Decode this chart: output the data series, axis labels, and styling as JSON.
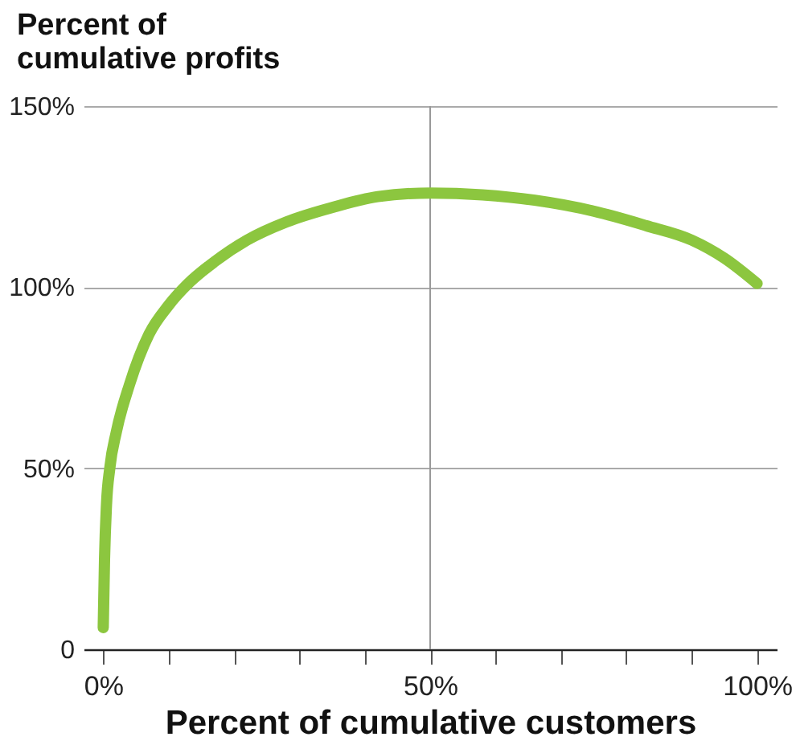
{
  "chart_data": {
    "type": "line",
    "xlabel": "Percent of cumulative customers",
    "ylabel": "Percent of cumulative profits",
    "x": [
      0,
      0.2,
      0.5,
      1,
      2,
      4,
      7,
      10,
      13,
      17,
      22,
      28,
      35,
      42,
      50,
      58,
      66,
      75,
      83,
      90,
      95,
      100
    ],
    "series": [
      {
        "color": "#8cc63f",
        "values": [
          6,
          25,
          40,
          50,
          60,
          73,
          87,
          95,
          101,
          107,
          113,
          118,
          122,
          125,
          126,
          125.5,
          124,
          121,
          117,
          113,
          108,
          101
        ]
      }
    ],
    "xlim": [
      -3,
      103
    ],
    "xticks": [
      {
        "value": 0,
        "label": "0%"
      },
      {
        "value": 10,
        "label": null
      },
      {
        "value": 20,
        "label": null
      },
      {
        "value": 30,
        "label": null
      },
      {
        "value": 40,
        "label": null
      },
      {
        "value": 50,
        "label": "50%"
      },
      {
        "value": 60,
        "label": null
      },
      {
        "value": 70,
        "label": null
      },
      {
        "value": 80,
        "label": null
      },
      {
        "value": 90,
        "label": null
      },
      {
        "value": 100,
        "label": "100%"
      }
    ],
    "ylim": [
      0,
      150
    ],
    "yticks": [
      0,
      {
        "value": 50,
        "label": "50%"
      },
      {
        "value": 100,
        "label": "100%"
      },
      {
        "value": 150,
        "label": "150%"
      }
    ],
    "grid": "y",
    "ref_lines": [
      {
        "axis": "x",
        "value": 50,
        "color": "#999999"
      }
    ]
  }
}
